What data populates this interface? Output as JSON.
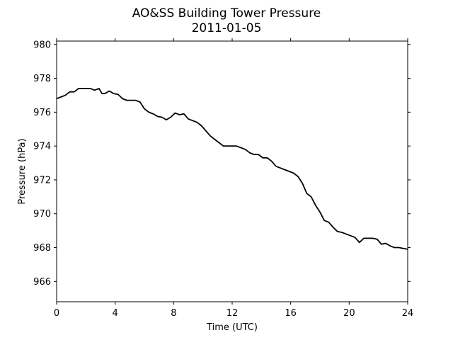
{
  "chart_data": {
    "type": "line",
    "title": "AO&SS Building Tower Pressure",
    "subtitle": "2011-01-05",
    "xlabel": "Time (UTC)",
    "ylabel": "Pressure (hPa)",
    "xlim": [
      0,
      24
    ],
    "ylim": [
      964.8,
      980.2
    ],
    "xticks": [
      0,
      4,
      8,
      12,
      16,
      20,
      24
    ],
    "yticks": [
      966,
      968,
      970,
      972,
      974,
      976,
      978,
      980
    ],
    "grid": false,
    "color": "#000000",
    "series": [
      {
        "x": [
          0,
          0.3,
          0.6,
          0.9,
          1.2,
          1.5,
          1.8,
          2.0,
          2.3,
          2.6,
          2.9,
          3.1,
          3.3,
          3.6,
          3.9,
          4.2,
          4.5,
          4.8,
          5.1,
          5.4,
          5.7,
          6.0,
          6.3,
          6.6,
          6.9,
          7.2,
          7.5,
          7.8,
          8.1,
          8.4,
          8.7,
          9.0,
          9.3,
          9.6,
          9.9,
          10.2,
          10.5,
          10.8,
          11.1,
          11.4,
          11.7,
          12.0,
          12.3,
          12.6,
          12.9,
          13.2,
          13.5,
          13.8,
          14.1,
          14.4,
          14.7,
          15.0,
          15.3,
          15.6,
          15.9,
          16.2,
          16.5,
          16.8,
          17.1,
          17.4,
          17.7,
          18.0,
          18.3,
          18.6,
          18.9,
          19.2,
          19.5,
          19.8,
          20.1,
          20.4,
          20.7,
          21.0,
          21.3,
          21.6,
          21.9,
          22.2,
          22.5,
          22.8,
          23.1,
          23.4,
          23.7,
          24.0
        ],
        "y": [
          976.8,
          976.9,
          977.0,
          977.2,
          977.2,
          977.4,
          977.4,
          977.4,
          977.4,
          977.3,
          977.4,
          977.1,
          977.1,
          977.25,
          977.1,
          977.05,
          976.8,
          976.7,
          976.7,
          976.7,
          976.6,
          976.2,
          976.0,
          975.9,
          975.75,
          975.7,
          975.55,
          975.7,
          975.95,
          975.85,
          975.9,
          975.6,
          975.5,
          975.4,
          975.2,
          974.9,
          974.6,
          974.4,
          974.2,
          974.0,
          974.0,
          974.0,
          974.0,
          973.9,
          973.8,
          973.6,
          973.5,
          973.5,
          973.3,
          973.3,
          973.1,
          972.8,
          972.7,
          972.6,
          972.5,
          972.4,
          972.2,
          971.8,
          971.2,
          971.0,
          970.5,
          970.1,
          969.6,
          969.5,
          969.2,
          968.95,
          968.9,
          968.8,
          968.7,
          968.6,
          968.3,
          968.55,
          968.55,
          968.55,
          968.5,
          968.2,
          968.25,
          968.1,
          968.0,
          968.0,
          967.95,
          967.9
        ]
      }
    ]
  }
}
